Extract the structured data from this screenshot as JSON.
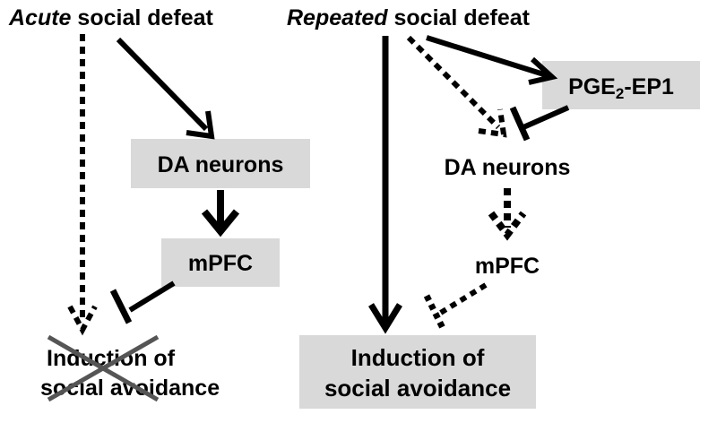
{
  "left_panel": {
    "title_emphasis": "Acute",
    "title_rest": " social defeat",
    "da_label": "DA neurons",
    "mpfc_label": "mPFC",
    "outcome_line1": "Induction of",
    "outcome_line2": "social avoidance"
  },
  "right_panel": {
    "title_emphasis": "Repeated",
    "title_rest": " social defeat",
    "pge_main": "PGE",
    "pge_sub": "2",
    "pge_suffix": "-EP1",
    "da_label": "DA neurons",
    "mpfc_label": "mPFC",
    "outcome_line1": "Induction of",
    "outcome_line2": "social avoidance"
  },
  "colors": {
    "box_fill": "#d9d9d9",
    "strike": "#555555"
  }
}
